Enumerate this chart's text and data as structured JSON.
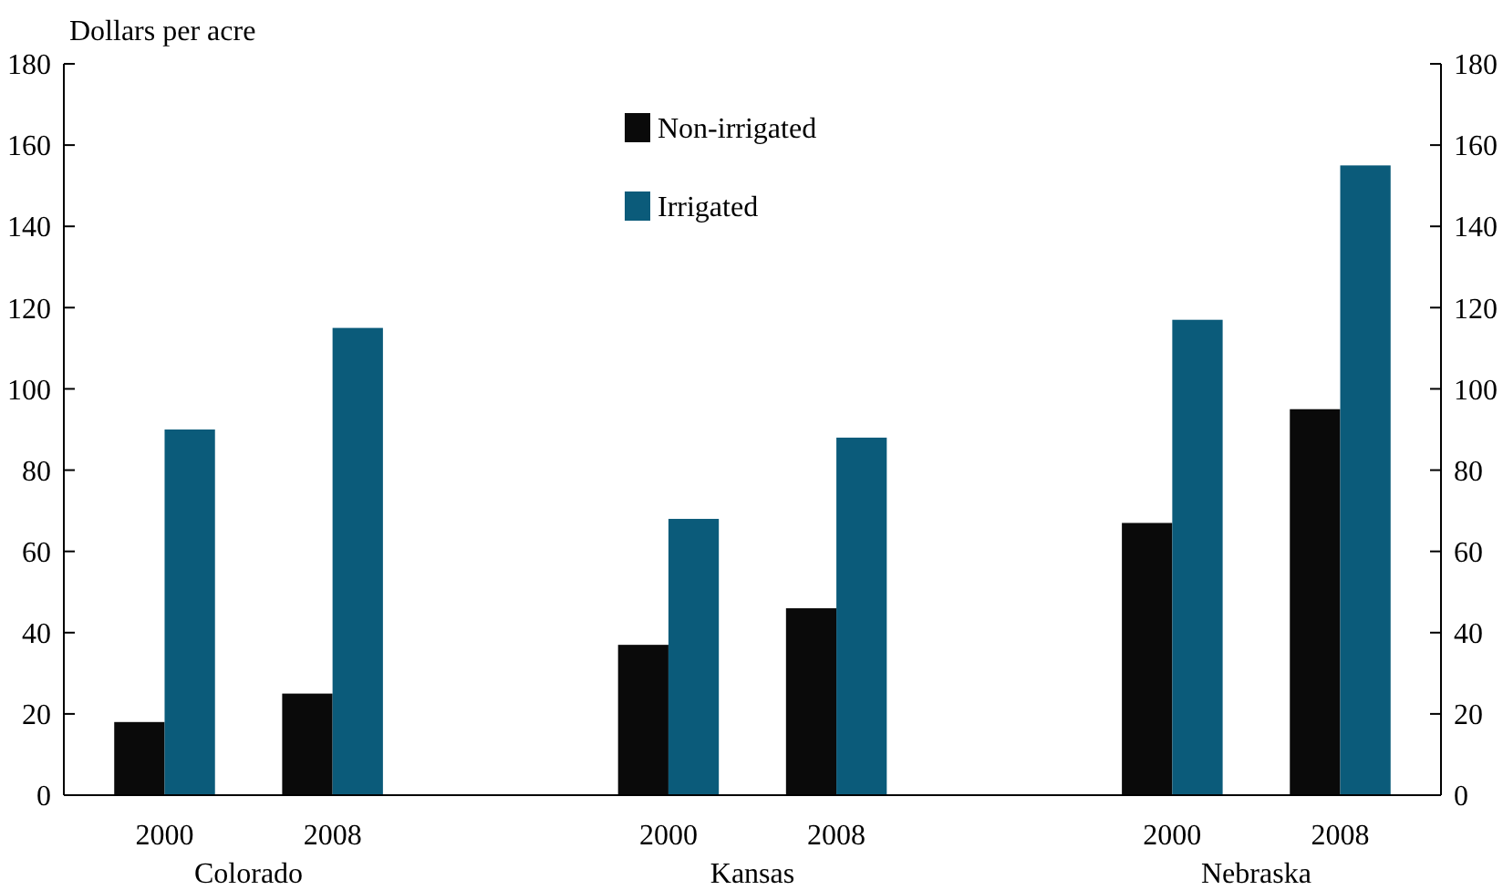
{
  "chart_data": {
    "type": "bar",
    "ylabel": "Dollars per acre",
    "categories": [
      "2000",
      "2008",
      null,
      "2000",
      "2008",
      null,
      "2000",
      "2008"
    ],
    "series": [
      {
        "name": "Non-irrigated",
        "color": "#0a0a0a",
        "values": [
          18,
          25,
          null,
          37,
          46,
          null,
          67,
          95
        ]
      },
      {
        "name": "Irrigated",
        "color": "#0b5b7a",
        "values": [
          90,
          115,
          null,
          68,
          88,
          null,
          117,
          155
        ]
      }
    ],
    "ylim": [
      0,
      180
    ],
    "yticks": [
      0,
      20,
      40,
      60,
      80,
      100,
      120,
      140,
      160,
      180
    ],
    "y2lim": [
      0,
      180
    ],
    "y2ticks": [
      0,
      20,
      40,
      60,
      80,
      100,
      120,
      140,
      160,
      180
    ],
    "annotations": [
      "Colorado",
      "Kansas",
      "Nebraska"
    ],
    "legend": "top",
    "grid": false
  }
}
